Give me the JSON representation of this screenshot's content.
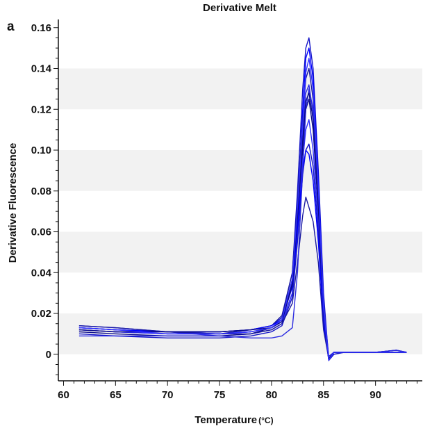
{
  "chart_data": {
    "type": "line",
    "title": "Derivative Melt",
    "panel_label": "a",
    "xlabel": "Temperature",
    "xunit": "(°C)",
    "ylabel": "Derivative Fluorescence",
    "xlim": [
      59.5,
      94.5
    ],
    "ylim": [
      -0.013,
      0.164
    ],
    "x_ticks": [
      60,
      65,
      70,
      75,
      80,
      85,
      90
    ],
    "x_tick_labels": [
      "60",
      "65",
      "70",
      "75",
      "80",
      "85",
      "90"
    ],
    "y_ticks": [
      0,
      0.02,
      0.04,
      0.06,
      0.08,
      0.1,
      0.12,
      0.14,
      0.16
    ],
    "y_tick_labels": [
      "0",
      "0.02",
      "0.04",
      "0.06",
      "0.08",
      "0.10",
      "0.12",
      "0.14",
      "0.16"
    ],
    "grid": "alternating horizontal bands",
    "legend": "none",
    "line_colors": [
      "#1414c8",
      "#0000ff",
      "#1a1aa0",
      "#2a2ae0",
      "#0a0a8a",
      "#3030ff"
    ],
    "series": [
      {
        "x": [
          61.5,
          65,
          70,
          75,
          78,
          80,
          81,
          82,
          82.5,
          83,
          83.3,
          83.6,
          84,
          84.5,
          85,
          85.5,
          86,
          87,
          88,
          90,
          92,
          93
        ],
        "y": [
          0.013,
          0.012,
          0.011,
          0.011,
          0.012,
          0.014,
          0.018,
          0.04,
          0.08,
          0.13,
          0.15,
          0.155,
          0.14,
          0.09,
          0.03,
          -0.003,
          0.001,
          0.001,
          0.001,
          0.001,
          0.001,
          0.001
        ]
      },
      {
        "x": [
          61.5,
          65,
          70,
          75,
          78,
          80,
          81,
          82,
          82.5,
          83,
          83.3,
          83.6,
          84,
          84.5,
          85,
          85.5,
          86,
          87,
          88,
          90,
          92,
          93
        ],
        "y": [
          0.014,
          0.013,
          0.011,
          0.01,
          0.011,
          0.013,
          0.016,
          0.035,
          0.07,
          0.12,
          0.145,
          0.15,
          0.135,
          0.085,
          0.025,
          -0.002,
          0.001,
          0.001,
          0.001,
          0.001,
          0.002,
          0.001
        ]
      },
      {
        "x": [
          61.5,
          65,
          70,
          75,
          78,
          80,
          81,
          82,
          82.5,
          83,
          83.3,
          83.6,
          84,
          84.5,
          85,
          85.5,
          86,
          87,
          88,
          90,
          92,
          93
        ],
        "y": [
          0.012,
          0.011,
          0.01,
          0.01,
          0.012,
          0.014,
          0.019,
          0.04,
          0.075,
          0.115,
          0.135,
          0.14,
          0.125,
          0.08,
          0.025,
          -0.003,
          0.0,
          0.001,
          0.001,
          0.001,
          0.001,
          0.001
        ]
      },
      {
        "x": [
          61.5,
          65,
          70,
          75,
          78,
          80,
          81,
          82,
          82.5,
          83,
          83.3,
          83.6,
          84,
          84.5,
          85,
          85.5,
          86,
          87,
          88,
          90,
          92,
          93
        ],
        "y": [
          0.013,
          0.012,
          0.011,
          0.009,
          0.01,
          0.012,
          0.015,
          0.03,
          0.065,
          0.11,
          0.128,
          0.132,
          0.118,
          0.075,
          0.02,
          -0.002,
          0.001,
          0.001,
          0.001,
          0.001,
          0.001,
          0.001
        ]
      },
      {
        "x": [
          61.5,
          65,
          70,
          75,
          78,
          80,
          81,
          82,
          82.5,
          83,
          83.3,
          83.6,
          84,
          84.5,
          85,
          85.5,
          86,
          87,
          88,
          90,
          92,
          93
        ],
        "y": [
          0.011,
          0.01,
          0.009,
          0.009,
          0.01,
          0.013,
          0.017,
          0.035,
          0.065,
          0.1,
          0.12,
          0.125,
          0.11,
          0.07,
          0.02,
          -0.003,
          0.001,
          0.001,
          0.001,
          0.001,
          0.002,
          0.001
        ]
      },
      {
        "x": [
          61.5,
          65,
          70,
          75,
          78,
          80,
          81,
          82,
          82.5,
          83,
          83.3,
          83.6,
          84,
          84.5,
          85,
          85.5,
          86,
          87,
          88,
          90,
          92,
          93
        ],
        "y": [
          0.012,
          0.011,
          0.01,
          0.01,
          0.011,
          0.013,
          0.016,
          0.03,
          0.06,
          0.095,
          0.11,
          0.115,
          0.1,
          0.065,
          0.018,
          -0.002,
          0.001,
          0.001,
          0.001,
          0.001,
          0.001,
          0.001
        ]
      },
      {
        "x": [
          61.5,
          65,
          70,
          75,
          78,
          80,
          81,
          82,
          82.5,
          83,
          83.3,
          83.6,
          84,
          84.5,
          85,
          85.5,
          86,
          87,
          88,
          90,
          92,
          93
        ],
        "y": [
          0.01,
          0.009,
          0.008,
          0.008,
          0.009,
          0.011,
          0.014,
          0.028,
          0.055,
          0.088,
          0.1,
          0.103,
          0.092,
          0.06,
          0.016,
          -0.003,
          0.0,
          0.001,
          0.001,
          0.001,
          0.001,
          0.001
        ]
      },
      {
        "x": [
          61.5,
          65,
          70,
          75,
          78,
          80,
          81,
          82,
          82.5,
          83,
          83.3,
          83.6,
          84,
          84.5,
          85,
          85.5,
          86,
          87,
          88,
          90,
          92,
          93
        ],
        "y": [
          0.013,
          0.012,
          0.011,
          0.011,
          0.012,
          0.014,
          0.017,
          0.033,
          0.062,
          0.09,
          0.1,
          0.098,
          0.085,
          0.055,
          0.015,
          -0.002,
          0.001,
          0.001,
          0.001,
          0.001,
          0.001,
          0.001
        ]
      },
      {
        "x": [
          61.5,
          65,
          70,
          75,
          78,
          80,
          81,
          82,
          82.5,
          83,
          83.3,
          83.6,
          84,
          84.5,
          85,
          85.5,
          86,
          87,
          88,
          90,
          92,
          93
        ],
        "y": [
          0.014,
          0.013,
          0.011,
          0.01,
          0.01,
          0.012,
          0.015,
          0.025,
          0.045,
          0.068,
          0.077,
          0.072,
          0.065,
          0.045,
          0.012,
          -0.002,
          0.001,
          0.001,
          0.001,
          0.001,
          0.001,
          0.001
        ]
      },
      {
        "x": [
          61.5,
          65,
          70,
          75,
          78,
          80,
          81,
          82,
          82.5,
          83,
          83.3,
          83.6,
          84,
          84.5,
          85,
          85.5,
          86,
          87,
          88,
          90,
          92,
          93
        ],
        "y": [
          0.009,
          0.009,
          0.009,
          0.009,
          0.008,
          0.008,
          0.009,
          0.013,
          0.04,
          0.09,
          0.12,
          0.13,
          0.12,
          0.08,
          0.025,
          -0.001,
          0.001,
          0.001,
          0.001,
          0.001,
          0.002,
          0.001
        ]
      },
      {
        "x": [
          61.5,
          65,
          70,
          75,
          78,
          80,
          81,
          82,
          82.5,
          83,
          83.3,
          83.6,
          84,
          84.5,
          85,
          85.5,
          86,
          87,
          88,
          90,
          92,
          93
        ],
        "y": [
          0.012,
          0.011,
          0.011,
          0.011,
          0.012,
          0.013,
          0.016,
          0.034,
          0.068,
          0.105,
          0.124,
          0.128,
          0.115,
          0.072,
          0.02,
          -0.003,
          0.001,
          0.001,
          0.001,
          0.001,
          0.001,
          0.001
        ]
      },
      {
        "x": [
          61.5,
          65,
          70,
          75,
          78,
          80,
          81,
          82,
          82.5,
          83,
          83.3,
          83.6,
          84,
          84.5,
          85,
          85.5,
          86,
          87,
          88,
          90,
          92,
          93
        ],
        "y": [
          0.013,
          0.012,
          0.01,
          0.01,
          0.011,
          0.013,
          0.017,
          0.037,
          0.072,
          0.112,
          0.138,
          0.145,
          0.13,
          0.082,
          0.022,
          -0.003,
          0.001,
          0.001,
          0.001,
          0.001,
          0.001,
          0.001
        ]
      }
    ]
  }
}
